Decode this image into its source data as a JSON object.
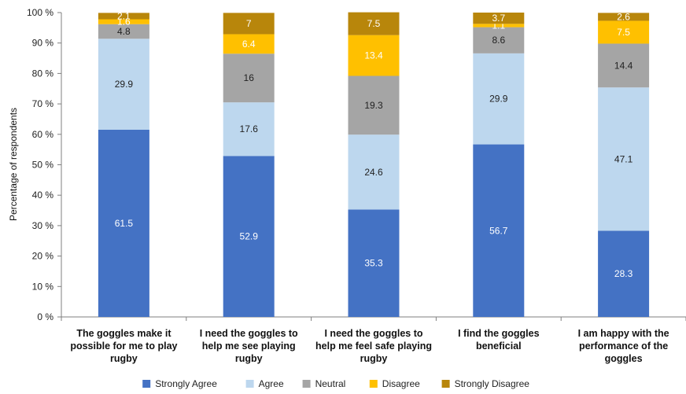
{
  "chart_data": {
    "type": "stacked-bar",
    "ylabel": "Percentage of respondents",
    "ylim": [
      0,
      100
    ],
    "yticks": [
      "0 %",
      "10 %",
      "20 %",
      "30 %",
      "40 %",
      "50 %",
      "60 %",
      "70 %",
      "80 %",
      "90 %",
      "100 %"
    ],
    "categories": [
      [
        "The goggles make it",
        "possible for me to play",
        "rugby"
      ],
      [
        "I need the goggles to",
        "help me see playing",
        "rugby"
      ],
      [
        "I need the goggles to",
        "help me feel safe playing",
        "rugby"
      ],
      [
        "I find the goggles",
        "beneficial"
      ],
      [
        "I am happy with the",
        "performance of the",
        "goggles"
      ]
    ],
    "series": [
      {
        "name": "Strongly Agree",
        "color": "#4472c4",
        "label_color": "#ffffff",
        "values": [
          61.5,
          52.9,
          35.3,
          56.7,
          28.3
        ]
      },
      {
        "name": "Agree",
        "color": "#bdd7ee",
        "label_color": "#222222",
        "values": [
          29.9,
          17.6,
          24.6,
          29.9,
          47.1
        ]
      },
      {
        "name": "Neutral",
        "color": "#a5a5a5",
        "label_color": "#222222",
        "values": [
          4.8,
          16,
          19.3,
          8.6,
          14.4
        ]
      },
      {
        "name": "Disagree",
        "color": "#ffc000",
        "label_color": "#ffffff",
        "values": [
          1.6,
          6.4,
          13.4,
          1.1,
          7.5
        ]
      },
      {
        "name": "Strongly Disagree",
        "color": "#b8860b",
        "label_color": "#ffffff",
        "values": [
          2.1,
          7,
          7.5,
          3.7,
          2.6
        ]
      }
    ],
    "grid": false,
    "legend_position": "bottom"
  }
}
